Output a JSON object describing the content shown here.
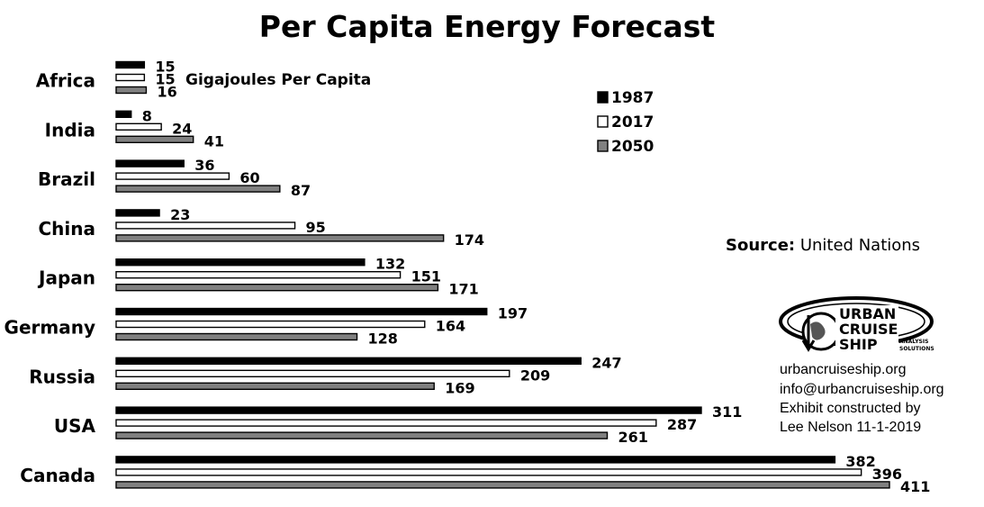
{
  "chart_data": {
    "type": "bar",
    "orientation": "horizontal",
    "title": "Per Capita Energy Forecast",
    "unit_label": "Gigajoules Per Capita",
    "categories": [
      "Africa",
      "India",
      "Brazil",
      "China",
      "Japan",
      "Germany",
      "Russia",
      "USA",
      "Canada"
    ],
    "series": [
      {
        "name": "1987",
        "color": "#000000",
        "values": [
          15,
          8,
          36,
          23,
          132,
          197,
          247,
          311,
          382
        ]
      },
      {
        "name": "2017",
        "color": "#ffffff",
        "values": [
          15,
          24,
          60,
          95,
          151,
          164,
          209,
          287,
          396
        ]
      },
      {
        "name": "2050",
        "color": "#808080",
        "values": [
          16,
          41,
          87,
          174,
          171,
          128,
          169,
          261,
          411
        ]
      }
    ],
    "xlim": [
      0,
      411
    ],
    "grid": false,
    "legend_position": "top-right"
  },
  "source": {
    "label": "Source:",
    "text": "United Nations"
  },
  "credits": {
    "website": "urbancruiseship.org",
    "email": "info@urbancruiseship.org",
    "line1": "Exhibit constructed by",
    "line2": "Lee Nelson 11-1-2019"
  },
  "logo": {
    "line1": "URBAN",
    "line2": "CRUISE",
    "line3": "SHIP",
    "tag1": "ANALYSIS",
    "tag2": "SOLUTIONS"
  }
}
